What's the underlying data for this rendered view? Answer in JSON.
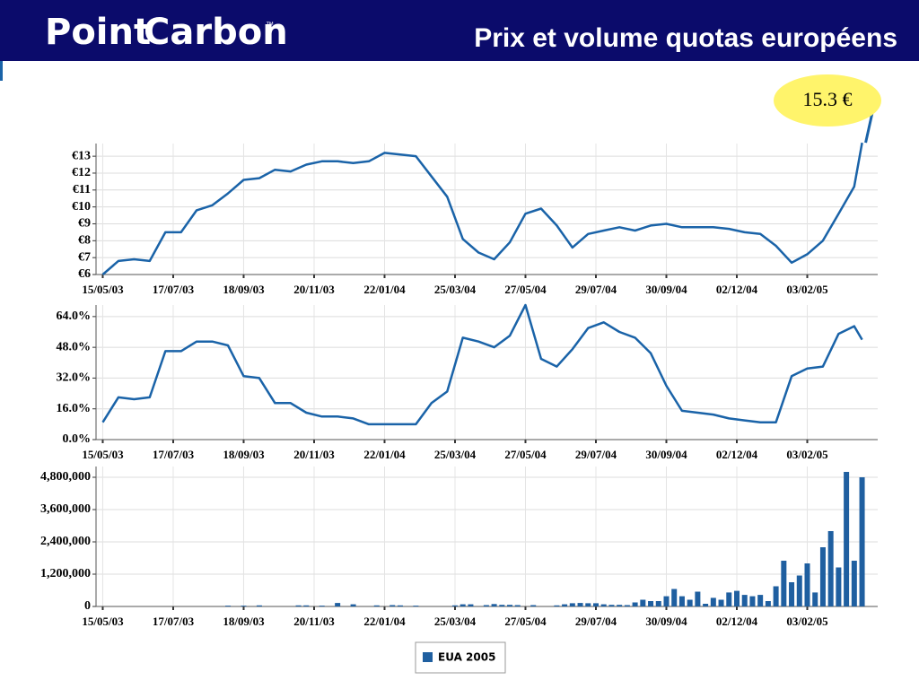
{
  "header": {
    "logo": [
      "Point",
      "Carbon"
    ],
    "logo_mark": "™",
    "title": "Prix et volume quotas européens"
  },
  "chart_data": [
    {
      "type": "line",
      "annotation": "15.3 €",
      "x": [
        "15/05/03",
        "29/05/03",
        "12/06/03",
        "26/06/03",
        "10/07/03",
        "24/07/03",
        "07/08/03",
        "21/08/03",
        "04/09/03",
        "18/09/03",
        "02/10/03",
        "16/10/03",
        "30/10/03",
        "13/11/03",
        "27/11/03",
        "11/12/03",
        "25/12/03",
        "08/01/04",
        "22/01/04",
        "05/02/04",
        "19/02/04",
        "04/03/04",
        "18/03/04",
        "01/04/04",
        "15/04/04",
        "29/04/04",
        "13/05/04",
        "27/05/04",
        "10/06/04",
        "24/06/04",
        "08/07/04",
        "22/07/04",
        "05/08/04",
        "19/08/04",
        "02/09/04",
        "16/09/04",
        "30/09/04",
        "14/10/04",
        "28/10/04",
        "11/11/04",
        "25/11/04",
        "09/12/04",
        "23/12/04",
        "06/01/05",
        "20/01/05",
        "03/02/05",
        "17/02/05",
        "03/03/05",
        "17/03/05",
        "24/03/05"
      ],
      "series": [
        {
          "color": "#1a63a8",
          "values": [
            6.0,
            6.8,
            6.9,
            6.8,
            8.5,
            8.5,
            9.8,
            10.1,
            10.8,
            11.6,
            11.7,
            12.2,
            12.1,
            12.5,
            12.7,
            12.7,
            12.6,
            12.7,
            13.2,
            13.1,
            13.0,
            11.8,
            10.6,
            8.1,
            7.3,
            6.9,
            7.9,
            9.6,
            9.9,
            8.9,
            7.6,
            8.4,
            8.6,
            8.8,
            8.6,
            8.9,
            9.0,
            8.8,
            8.8,
            8.8,
            8.7,
            8.5,
            8.4,
            7.7,
            6.7,
            7.2,
            8.0,
            9.6,
            11.2,
            13.8
          ]
        }
      ],
      "xlim": [
        "09/05/03",
        "07/04/05"
      ],
      "xticks": [
        "15/05/03",
        "17/07/03",
        "18/09/03",
        "20/11/03",
        "22/01/04",
        "25/03/04",
        "27/05/04",
        "29/07/04",
        "30/09/04",
        "02/12/04",
        "03/02/05"
      ],
      "ylim": [
        6,
        13.75
      ],
      "yticks": [
        {
          "value": 6,
          "label": "€6"
        },
        {
          "value": 7,
          "label": "€7"
        },
        {
          "value": 8,
          "label": "€8"
        },
        {
          "value": 9,
          "label": "€9"
        },
        {
          "value": 10,
          "label": "€10"
        },
        {
          "value": 11,
          "label": "€11"
        },
        {
          "value": 12,
          "label": "€12"
        },
        {
          "value": 13,
          "label": "€13"
        }
      ],
      "grid": true
    },
    {
      "type": "line",
      "x": [
        "15/05/03",
        "29/05/03",
        "12/06/03",
        "26/06/03",
        "10/07/03",
        "24/07/03",
        "07/08/03",
        "21/08/03",
        "04/09/03",
        "18/09/03",
        "02/10/03",
        "16/10/03",
        "30/10/03",
        "13/11/03",
        "27/11/03",
        "11/12/03",
        "25/12/03",
        "08/01/04",
        "22/01/04",
        "05/02/04",
        "19/02/04",
        "04/03/04",
        "18/03/04",
        "01/04/04",
        "15/04/04",
        "29/04/04",
        "13/05/04",
        "27/05/04",
        "10/06/04",
        "24/06/04",
        "08/07/04",
        "22/07/04",
        "05/08/04",
        "19/08/04",
        "02/09/04",
        "16/09/04",
        "30/09/04",
        "14/10/04",
        "28/10/04",
        "11/11/04",
        "25/11/04",
        "09/12/04",
        "23/12/04",
        "06/01/05",
        "20/01/05",
        "03/02/05",
        "17/02/05",
        "03/03/05",
        "17/03/05",
        "24/03/05"
      ],
      "series": [
        {
          "color": "#1a63a8",
          "values": [
            9,
            22,
            21,
            22,
            46,
            46,
            51,
            51,
            49,
            33,
            32,
            19,
            19,
            14,
            12,
            12,
            11,
            8,
            8,
            8,
            8,
            19,
            25,
            53,
            51,
            48,
            54,
            70,
            42,
            38,
            47,
            58,
            61,
            56,
            53,
            45,
            28,
            15,
            14,
            13,
            11,
            10,
            9,
            9,
            33,
            37,
            38,
            55,
            59,
            52
          ]
        }
      ],
      "xlim": [
        "09/05/03",
        "07/04/05"
      ],
      "xticks": [
        "15/05/03",
        "17/07/03",
        "18/09/03",
        "20/11/03",
        "22/01/04",
        "25/03/04",
        "27/05/04",
        "29/07/04",
        "30/09/04",
        "02/12/04",
        "03/02/05"
      ],
      "ylim": [
        0,
        70
      ],
      "yticks": [
        {
          "value": 0,
          "label": "0.0%"
        },
        {
          "value": 16,
          "label": "16.0%"
        },
        {
          "value": 32,
          "label": "32.0%"
        },
        {
          "value": 48,
          "label": "48.0%"
        },
        {
          "value": 64,
          "label": "64.0%"
        }
      ],
      "grid": true
    },
    {
      "type": "bar",
      "legend": "bottom",
      "x": [
        "15/05/03",
        "22/05/03",
        "29/05/03",
        "05/06/03",
        "12/06/03",
        "19/06/03",
        "26/06/03",
        "03/07/03",
        "10/07/03",
        "17/07/03",
        "24/07/03",
        "31/07/03",
        "07/08/03",
        "14/08/03",
        "21/08/03",
        "28/08/03",
        "04/09/03",
        "11/09/03",
        "18/09/03",
        "25/09/03",
        "02/10/03",
        "09/10/03",
        "16/10/03",
        "23/10/03",
        "30/10/03",
        "06/11/03",
        "13/11/03",
        "20/11/03",
        "27/11/03",
        "04/12/03",
        "11/12/03",
        "18/12/03",
        "25/12/03",
        "01/01/04",
        "08/01/04",
        "15/01/04",
        "22/01/04",
        "29/01/04",
        "05/02/04",
        "12/02/04",
        "19/02/04",
        "26/02/04",
        "04/03/04",
        "11/03/04",
        "18/03/04",
        "25/03/04",
        "01/04/04",
        "08/04/04",
        "15/04/04",
        "22/04/04",
        "29/04/04",
        "06/05/04",
        "13/05/04",
        "20/05/04",
        "27/05/04",
        "03/06/04",
        "10/06/04",
        "17/06/04",
        "24/06/04",
        "01/07/04",
        "08/07/04",
        "15/07/04",
        "22/07/04",
        "29/07/04",
        "05/08/04",
        "12/08/04",
        "19/08/04",
        "26/08/04",
        "02/09/04",
        "09/09/04",
        "16/09/04",
        "23/09/04",
        "30/09/04",
        "07/10/04",
        "14/10/04",
        "21/10/04",
        "28/10/04",
        "04/11/04",
        "11/11/04",
        "18/11/04",
        "25/11/04",
        "02/12/04",
        "09/12/04",
        "16/12/04",
        "23/12/04",
        "30/12/04",
        "06/01/05",
        "13/01/05",
        "20/01/05",
        "27/01/05",
        "03/02/05",
        "10/02/05",
        "17/02/05",
        "24/02/05",
        "03/03/05",
        "10/03/05",
        "17/03/05",
        "24/03/05"
      ],
      "series": [
        {
          "name": "EUA 2005",
          "color": "#1f5fa0",
          "values": [
            0,
            0,
            0,
            0,
            0,
            0,
            0,
            0,
            0,
            0,
            0,
            0,
            0,
            0,
            0,
            0,
            30000,
            0,
            30000,
            0,
            40000,
            0,
            0,
            0,
            0,
            40000,
            40000,
            0,
            30000,
            0,
            130000,
            0,
            80000,
            0,
            0,
            40000,
            0,
            50000,
            40000,
            0,
            30000,
            0,
            0,
            0,
            0,
            40000,
            80000,
            80000,
            0,
            50000,
            90000,
            60000,
            60000,
            50000,
            0,
            50000,
            0,
            0,
            40000,
            80000,
            120000,
            130000,
            120000,
            120000,
            80000,
            60000,
            60000,
            50000,
            150000,
            250000,
            200000,
            200000,
            380000,
            650000,
            380000,
            250000,
            550000,
            100000,
            320000,
            250000,
            520000,
            580000,
            430000,
            380000,
            430000,
            200000,
            750000,
            1700000,
            900000,
            1150000,
            1600000,
            520000,
            2200000,
            2800000,
            1450000,
            5000000,
            1700000,
            4800000
          ]
        }
      ],
      "xlim": [
        "09/05/03",
        "07/04/05"
      ],
      "xticks": [
        "15/05/03",
        "17/07/03",
        "18/09/03",
        "20/11/03",
        "22/01/04",
        "25/03/04",
        "27/05/04",
        "29/07/04",
        "30/09/04",
        "02/12/04",
        "03/02/05"
      ],
      "ylim": [
        0,
        5200000
      ],
      "yticks": [
        0,
        {
          "value": 1200000,
          "label": "1,200,000"
        },
        {
          "value": 2400000,
          "label": "2,400,000"
        },
        {
          "value": 3600000,
          "label": "3,600,000"
        },
        {
          "value": 4800000,
          "label": "4,800,000"
        }
      ],
      "grid": true
    }
  ]
}
